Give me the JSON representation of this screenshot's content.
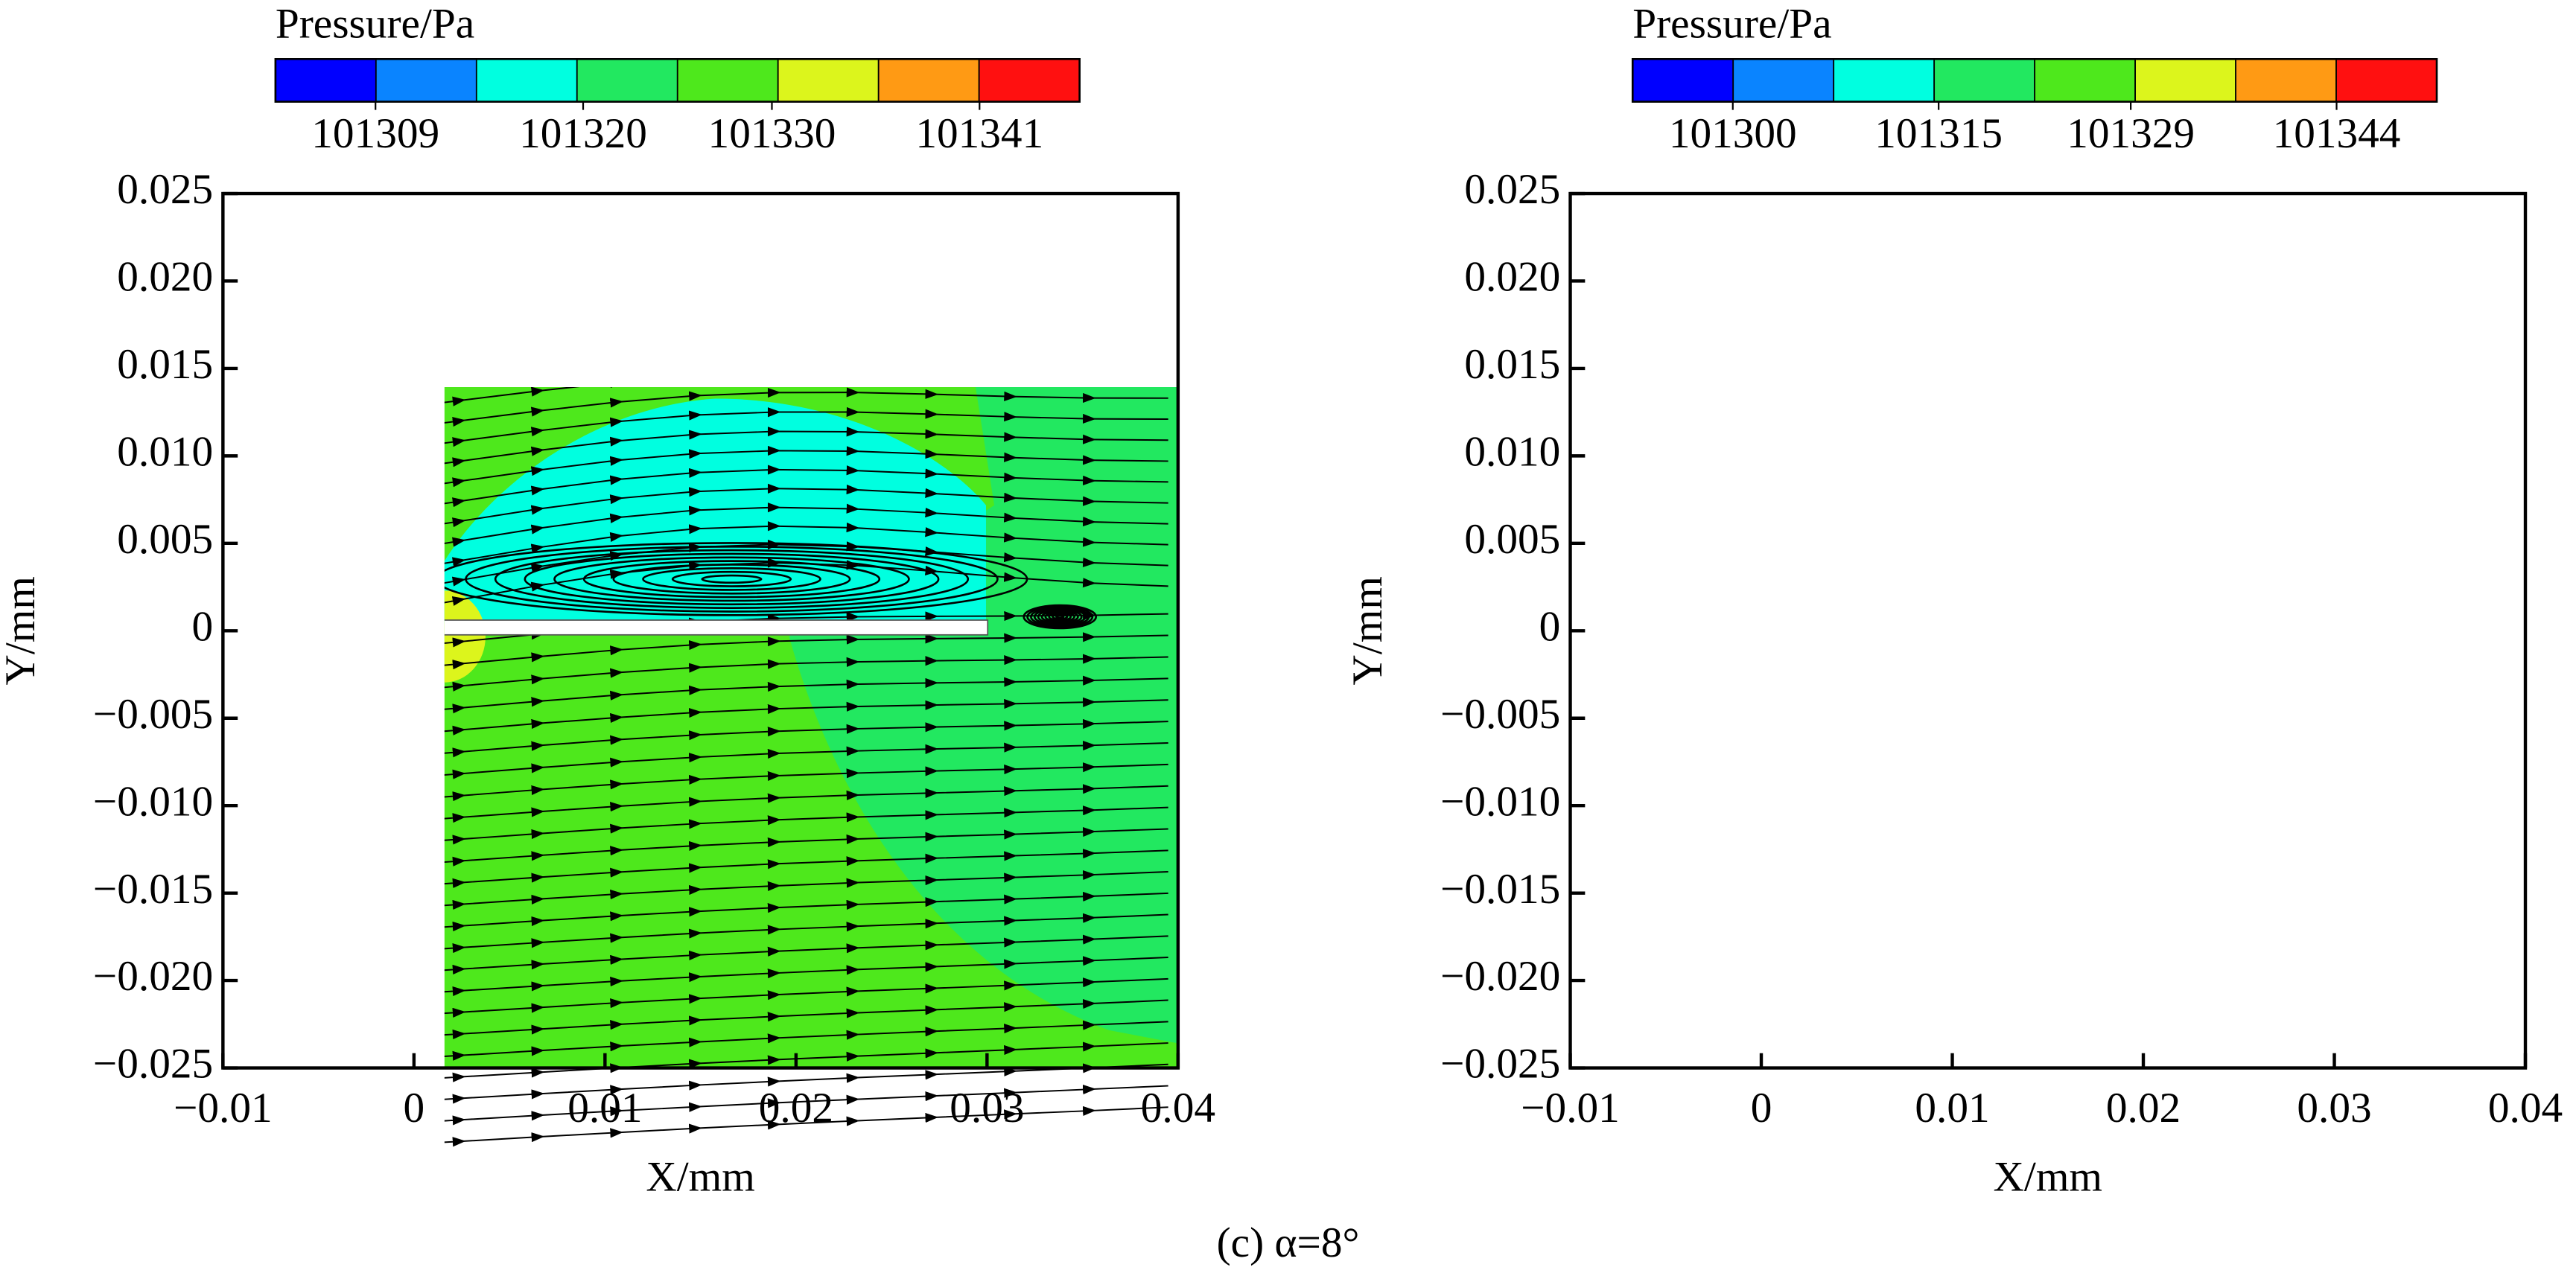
{
  "caption": "(c) α=8°",
  "chart_data": [
    {
      "type": "contour",
      "xlabel": "X/mm",
      "ylabel": "Y/mm",
      "xlim": [
        -0.01,
        0.04
      ],
      "ylim": [
        -0.025,
        0.025
      ],
      "xticks": [
        {
          "value": -0.01,
          "label": "−0.01"
        },
        0,
        0.01,
        0.02,
        0.03,
        0.04
      ],
      "yticks": [
        {
          "value": -0.025,
          "label": "−0.025"
        },
        {
          "value": -0.02,
          "label": "−0.020"
        },
        {
          "value": -0.015,
          "label": "−0.015"
        },
        {
          "value": -0.01,
          "label": "−0.010"
        },
        {
          "value": -0.005,
          "label": "−0.005"
        },
        0,
        0.005,
        {
          "value": 0.01,
          "label": "0.010"
        },
        0.015,
        {
          "value": 0.02,
          "label": "0.020"
        },
        0.025
      ],
      "colorbar": {
        "title": "Pressure/Pa",
        "clim": [
          101303.7,
          101346.3
        ],
        "colors": [
          "#0000ff",
          "#0a84ff",
          "#00ffe0",
          "#22e860",
          "#4ee81c",
          "#dcf51c",
          "#ff9a14",
          "#ff1010"
        ],
        "ticks": [
          101309,
          101320,
          101330,
          101341
        ]
      }
    },
    {
      "type": "contour",
      "xlabel": "X/mm",
      "ylabel": "Y/mm",
      "xlim": [
        -0.01,
        0.04
      ],
      "ylim": [
        -0.025,
        0.025
      ],
      "xticks": [
        {
          "value": -0.01,
          "label": "−0.01"
        },
        0,
        0.01,
        0.02,
        0.03,
        0.04
      ],
      "yticks": [
        {
          "value": -0.025,
          "label": "−0.025"
        },
        {
          "value": -0.02,
          "label": "−0.020"
        },
        {
          "value": -0.015,
          "label": "−0.015"
        },
        {
          "value": -0.01,
          "label": "−0.010"
        },
        {
          "value": -0.005,
          "label": "−0.005"
        },
        0,
        0.005,
        {
          "value": 0.01,
          "label": "0.010"
        },
        0.015,
        {
          "value": 0.02,
          "label": "0.020"
        },
        0.025
      ],
      "colorbar": {
        "title": "Pressure/Pa",
        "clim": [
          101292.7,
          101351.3
        ],
        "colors": [
          "#0000ff",
          "#0a84ff",
          "#00ffe0",
          "#22e860",
          "#4ee81c",
          "#dcf51c",
          "#ff9a14",
          "#ff1010"
        ],
        "ticks": [
          101300,
          101315,
          101329,
          101344
        ]
      }
    }
  ]
}
